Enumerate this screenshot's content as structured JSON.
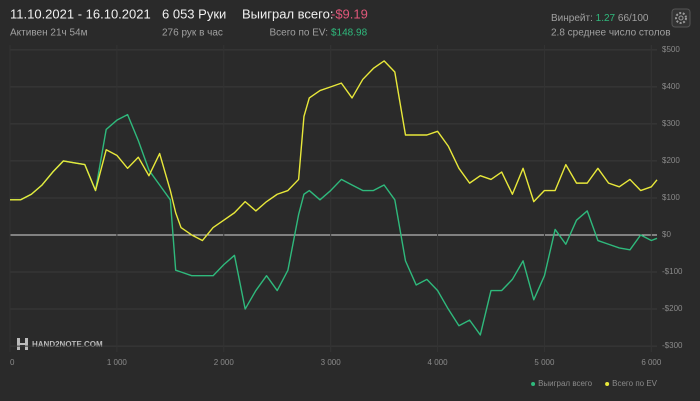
{
  "header": {
    "date_range": "11.10.2021 - 16.10.2021",
    "active": "Активен 21ч 54м",
    "hands": "6 053 Руки",
    "hands_per_hour": "276 рук в час",
    "won_label": "Выиграл всего:",
    "won_value": "-$9.19",
    "ev_label": "Всего по EV:",
    "ev_value": "$148.98",
    "winrate_label": "Винрейт:",
    "winrate_value": "1.27",
    "winrate_unit": "66/100",
    "tables": "2.8 среднее число столов"
  },
  "watermark": "HAND2NOTE.COM",
  "chart_data": {
    "type": "line",
    "x": [
      0,
      100,
      200,
      300,
      400,
      500,
      600,
      700,
      800,
      900,
      1000,
      1100,
      1200,
      1300,
      1400,
      1500,
      1550,
      1600,
      1700,
      1800,
      1900,
      2000,
      2100,
      2200,
      2300,
      2400,
      2500,
      2600,
      2700,
      2750,
      2800,
      2900,
      3000,
      3100,
      3200,
      3300,
      3400,
      3500,
      3600,
      3700,
      3800,
      3900,
      4000,
      4100,
      4200,
      4300,
      4400,
      4500,
      4600,
      4700,
      4800,
      4900,
      5000,
      5100,
      5200,
      5300,
      5400,
      5500,
      5600,
      5700,
      5800,
      5900,
      6000,
      6053
    ],
    "series": [
      {
        "name": "Выиграл всего",
        "color": "#2fb97c",
        "values": [
          95,
          95,
          110,
          135,
          170,
          200,
          195,
          190,
          120,
          285,
          310,
          325,
          255,
          175,
          135,
          95,
          -95,
          -100,
          -110,
          -110,
          -110,
          -80,
          -55,
          -200,
          -150,
          -110,
          -150,
          -95,
          55,
          110,
          120,
          95,
          120,
          150,
          135,
          120,
          120,
          135,
          95,
          -70,
          -135,
          -120,
          -150,
          -200,
          -245,
          -230,
          -270,
          -150,
          -150,
          -120,
          -70,
          -175,
          -110,
          15,
          -25,
          40,
          65,
          -15,
          -25,
          -35,
          -40,
          0,
          -15,
          -9
        ]
      },
      {
        "name": "Всего по EV",
        "color": "#e8e83a",
        "values": [
          95,
          95,
          110,
          135,
          170,
          200,
          195,
          190,
          120,
          230,
          215,
          180,
          210,
          160,
          220,
          120,
          60,
          20,
          0,
          -15,
          20,
          40,
          60,
          90,
          65,
          90,
          110,
          120,
          150,
          320,
          370,
          390,
          400,
          410,
          370,
          420,
          450,
          470,
          440,
          270,
          270,
          270,
          280,
          240,
          180,
          140,
          160,
          150,
          170,
          110,
          180,
          90,
          120,
          120,
          190,
          140,
          140,
          180,
          140,
          130,
          150,
          120,
          130,
          149
        ]
      }
    ],
    "xlim": [
      0,
      6053
    ],
    "xticks": [
      0,
      {
        "value": 1000,
        "label": "1 000"
      },
      {
        "value": 2000,
        "label": "2 000"
      },
      {
        "value": 3000,
        "label": "3 000"
      },
      {
        "value": 4000,
        "label": "4 000"
      },
      {
        "value": 5000,
        "label": "5 000"
      },
      {
        "value": 6000,
        "label": "6 000"
      }
    ],
    "ylim": [
      -316,
      513
    ],
    "yticks": [
      {
        "value": 500,
        "label": "$500"
      },
      {
        "value": 400,
        "label": "$400"
      },
      {
        "value": 300,
        "label": "$300"
      },
      {
        "value": 200,
        "label": "$200"
      },
      {
        "value": 100,
        "label": "$100"
      },
      {
        "value": 0,
        "label": "$0"
      },
      {
        "value": -100,
        "label": "-$100"
      },
      {
        "value": -200,
        "label": "-$200"
      },
      {
        "value": -300,
        "label": "-$300"
      }
    ],
    "grid": true,
    "legend": "bottom-right"
  }
}
